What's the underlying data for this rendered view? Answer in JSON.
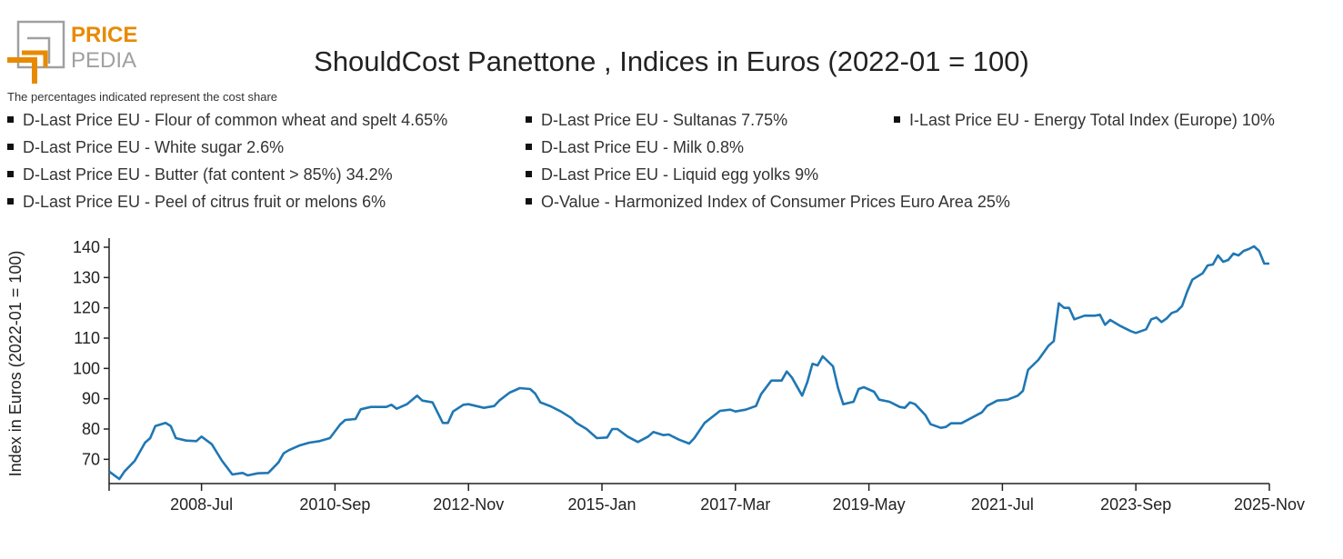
{
  "logo": {
    "text_top": "PRICE",
    "text_bottom": "PEDIA",
    "colors": {
      "orange": "#E88A00",
      "gray": "#A0A0A0"
    }
  },
  "note": "The percentages indicated represent the cost share",
  "legend": [
    "D-Last Price EU - Flour of common wheat and spelt 4.65%",
    "D-Last Price EU - White sugar 2.6%",
    "D-Last Price EU - Butter (fat content > 85%) 34.2%",
    "D-Last Price EU - Peel of citrus fruit or melons 6%",
    "D-Last Price EU - Sultanas 7.75%",
    "D-Last Price EU - Milk 0.8%",
    "D-Last Price EU - Liquid egg yolks 9%",
    "O-Value - Harmonized Index of Consumer Prices Euro Area 25%",
    "I-Last Price EU - Energy Total Index (Europe) 10%"
  ],
  "chart_data": {
    "type": "line",
    "title": "ShouldCost Panettone , Indices in Euros (2022-01 = 100)",
    "xlabel": "",
    "ylabel": "Index in Euros (2022-01 = 100)",
    "xlim": [
      "2007-01",
      "2025-11"
    ],
    "ylim": [
      62,
      143
    ],
    "x_ticks": [
      "2008-Jul",
      "2010-Sep",
      "2012-Nov",
      "2015-Jan",
      "2017-Mar",
      "2019-May",
      "2021-Jul",
      "2023-Sep",
      "2025-Nov"
    ],
    "y_ticks": [
      70,
      80,
      90,
      100,
      110,
      120,
      130,
      140
    ],
    "grid": false,
    "line_color": "#1F77B4",
    "series": [
      {
        "x": [
          "2007-01",
          "2007-03",
          "2007-04",
          "2007-06",
          "2007-08",
          "2007-09",
          "2007-10",
          "2007-12",
          "2008-01",
          "2008-02",
          "2008-04",
          "2008-06",
          "2008-07",
          "2008-09",
          "2008-11",
          "2009-01",
          "2009-03",
          "2009-04",
          "2009-06",
          "2009-08",
          "2009-10",
          "2009-11",
          "2009-12",
          "2010-02",
          "2010-04",
          "2010-06",
          "2010-08",
          "2010-10",
          "2010-11",
          "2011-01",
          "2011-02",
          "2011-04",
          "2011-07",
          "2011-08",
          "2011-09",
          "2011-11",
          "2012-01",
          "2012-02",
          "2012-04",
          "2012-06",
          "2012-07",
          "2012-08",
          "2012-10",
          "2012-11",
          "2013-02",
          "2013-04",
          "2013-05",
          "2013-07",
          "2013-09",
          "2013-11",
          "2013-12",
          "2014-01",
          "2014-03",
          "2014-05",
          "2014-07",
          "2014-08",
          "2014-10",
          "2014-12",
          "2015-02",
          "2015-03",
          "2015-04",
          "2015-06",
          "2015-08",
          "2015-10",
          "2015-11",
          "2016-01",
          "2016-02",
          "2016-04",
          "2016-06",
          "2016-07",
          "2016-09",
          "2016-12",
          "2017-02",
          "2017-03",
          "2017-05",
          "2017-07",
          "2017-08",
          "2017-10",
          "2017-12",
          "2018-01",
          "2018-02",
          "2018-04",
          "2018-05",
          "2018-06",
          "2018-07",
          "2018-08",
          "2018-10",
          "2018-11",
          "2018-12",
          "2019-02",
          "2019-03",
          "2019-04",
          "2019-06",
          "2019-07",
          "2019-09",
          "2019-11",
          "2019-12",
          "2020-01",
          "2020-02",
          "2020-04",
          "2020-05",
          "2020-07",
          "2020-08",
          "2020-09",
          "2020-11",
          "2021-01",
          "2021-03",
          "2021-04",
          "2021-06",
          "2021-08",
          "2021-10",
          "2021-11",
          "2021-12",
          "2022-02",
          "2022-04",
          "2022-05",
          "2022-06",
          "2022-07",
          "2022-08",
          "2022-09",
          "2022-11",
          "2023-01",
          "2023-02",
          "2023-03",
          "2023-04",
          "2023-06",
          "2023-08",
          "2023-09",
          "2023-11",
          "2023-12",
          "2024-01",
          "2024-02",
          "2024-03",
          "2024-04",
          "2024-05",
          "2024-06",
          "2024-07",
          "2024-08",
          "2024-10",
          "2024-11",
          "2024-12",
          "2025-01",
          "2025-02",
          "2025-03",
          "2025-04",
          "2025-05",
          "2025-06",
          "2025-07",
          "2025-08",
          "2025-09",
          "2025-10",
          "2025-11"
        ],
        "y": [
          66,
          63.5,
          66,
          69.5,
          75.5,
          77,
          81,
          82,
          81,
          77,
          76.2,
          76,
          77.5,
          75,
          69.5,
          65,
          65.5,
          64.7,
          65.4,
          65.5,
          69,
          72,
          73,
          74.5,
          75.5,
          76,
          77,
          81.5,
          83,
          83.3,
          86.5,
          87.3,
          87.3,
          88,
          86.7,
          88.2,
          91,
          89.4,
          88.8,
          82,
          82,
          85.8,
          88,
          88.2,
          87,
          87.6,
          89.4,
          92,
          93.5,
          93.2,
          91.7,
          88.8,
          87.5,
          85.8,
          83.7,
          82,
          80,
          77,
          77.2,
          80,
          80,
          77.5,
          75.7,
          77.5,
          79,
          78,
          78.2,
          76.5,
          75.2,
          77,
          82,
          86,
          86.4,
          85.8,
          86.4,
          87.6,
          91.5,
          96,
          96,
          99,
          97,
          91,
          95.5,
          101.5,
          101,
          104,
          100.7,
          93.5,
          88.2,
          89,
          93.2,
          93.8,
          92.3,
          89.7,
          89,
          87.3,
          87,
          88.8,
          88.2,
          84.6,
          81.6,
          80.4,
          80.7,
          81.9,
          81.9,
          83.7,
          85.5,
          87.6,
          89.4,
          89.7,
          91,
          92.6,
          99.5,
          102.8,
          107.5,
          109,
          121.5,
          120,
          120,
          116.2,
          117.4,
          117.4,
          117.7,
          114.4,
          116,
          114,
          112.3,
          111.7,
          112.9,
          116.2,
          116.8,
          115.3,
          116.5,
          118.3,
          118.9,
          120.6,
          125.4,
          129.3,
          131.4,
          134,
          134.3,
          137.3,
          135.2,
          135.8,
          137.9,
          137.3,
          138.8,
          139.4,
          140.3,
          138.8,
          134.6,
          134.6
        ]
      }
    ]
  }
}
